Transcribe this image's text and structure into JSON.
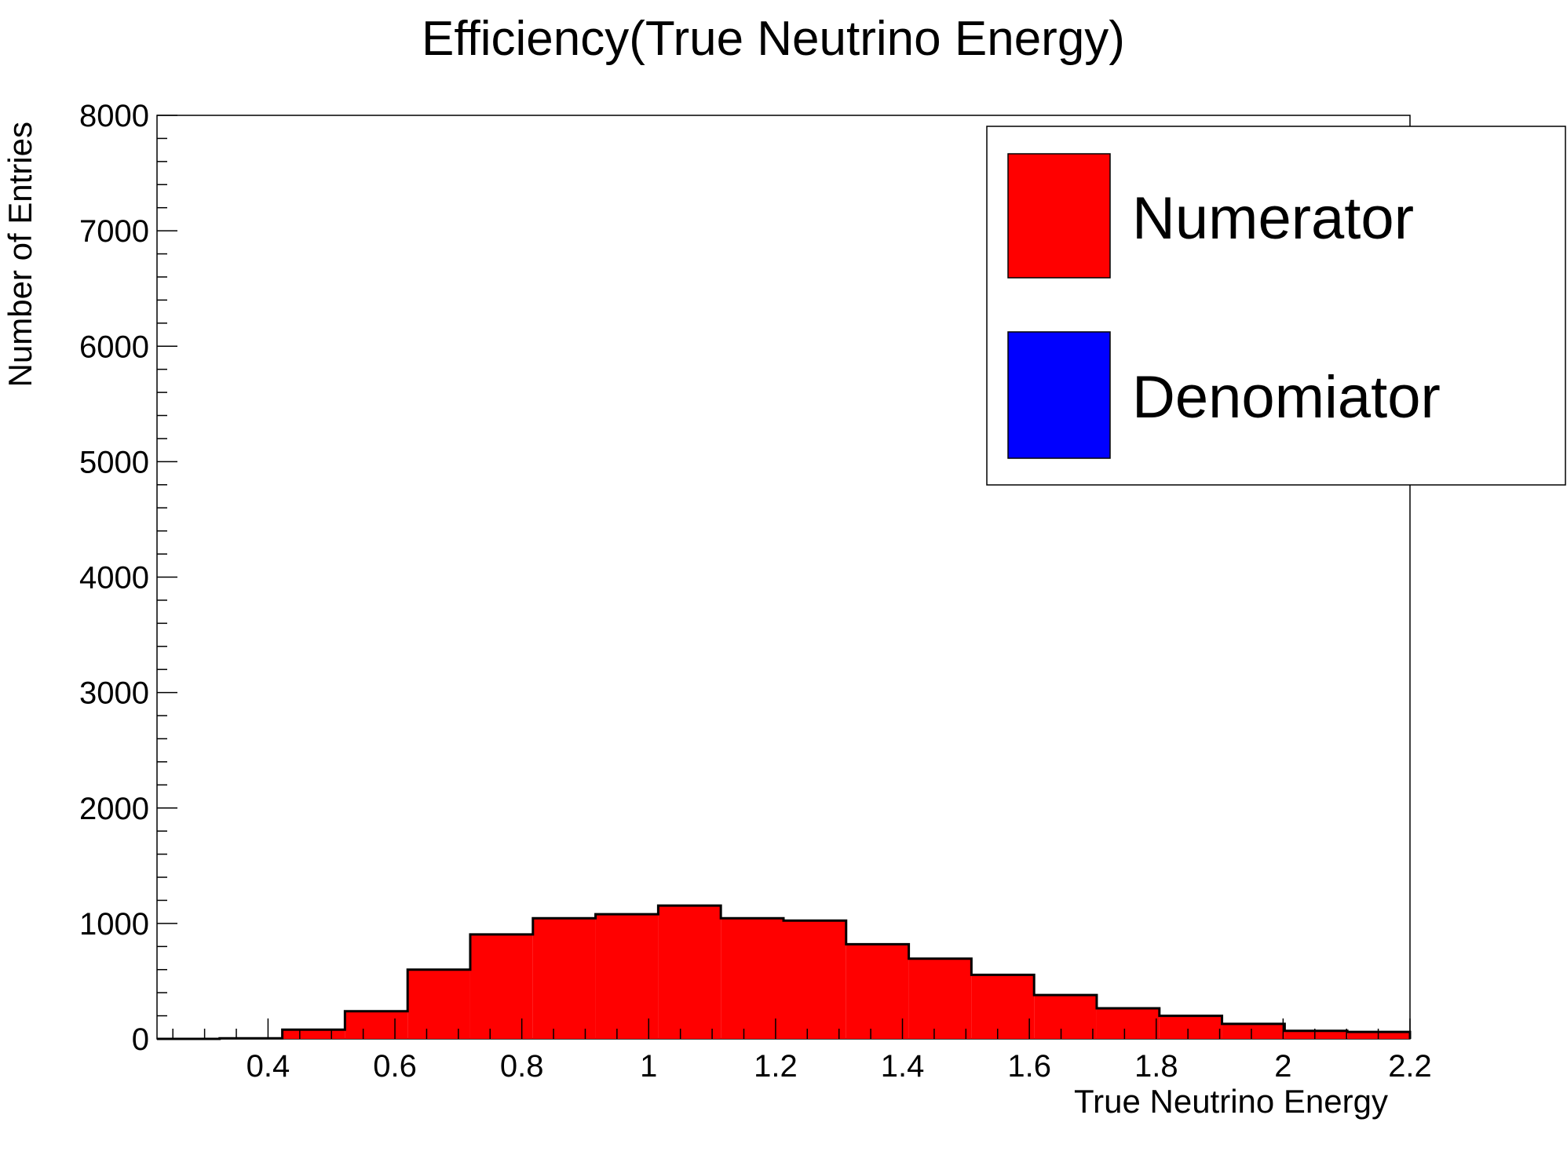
{
  "chart_data": {
    "type": "bar",
    "title": "Efficiency(True Neutrino Energy)",
    "xlabel": "True Neutrino Energy",
    "ylabel": "Number of Entries",
    "xlim": [
      0.225,
      2.2
    ],
    "ylim": [
      0,
      8000
    ],
    "x_ticks": [
      "0.4",
      "0.6",
      "0.8",
      "1",
      "1.2",
      "1.4",
      "1.6",
      "1.8",
      "2",
      "2.2"
    ],
    "y_ticks": [
      "0",
      "1000",
      "2000",
      "3000",
      "4000",
      "5000",
      "6000",
      "7000",
      "8000"
    ],
    "bin_edges": [
      0.225,
      0.3237,
      0.4225,
      0.5212,
      0.62,
      0.7187,
      0.8175,
      0.9162,
      1.015,
      1.1137,
      1.2125,
      1.3112,
      1.41,
      1.5087,
      1.6075,
      1.7062,
      1.805,
      1.9037,
      2.0025,
      2.1012,
      2.2
    ],
    "series": [
      {
        "name": "Numerator",
        "color": "#ff0000",
        "values": [
          0,
          5,
          80,
          240,
          600,
          905,
          1045,
          1080,
          1155,
          1045,
          1025,
          820,
          695,
          555,
          380,
          265,
          200,
          130,
          70,
          60
        ]
      },
      {
        "name": "Denomiator",
        "color": "#0000ff",
        "values": []
      }
    ],
    "grid": false,
    "legend_position": "top-right"
  }
}
